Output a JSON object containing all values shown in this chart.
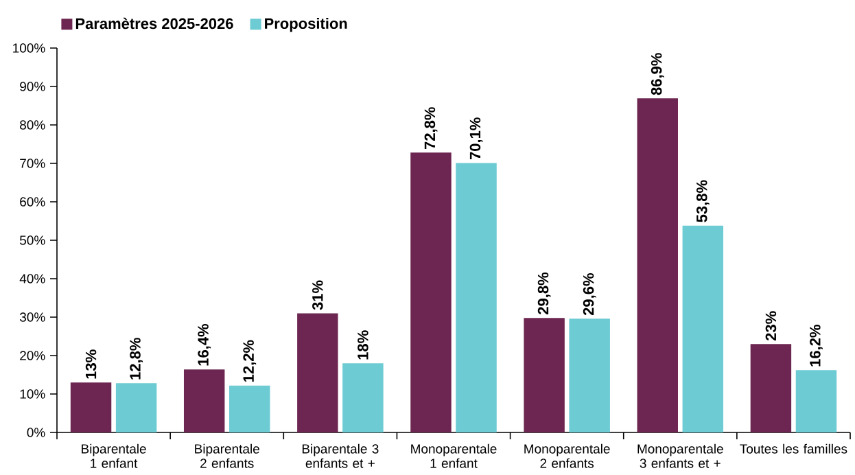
{
  "chart_data": {
    "type": "bar",
    "categories": [
      "Biparentale 1 enfant",
      "Biparentale 2 enfants",
      "Biparentale 3 enfants et +",
      "Monoparentale 1 enfant",
      "Monoparentale 2 enfants",
      "Monoparentale 3 enfants et +",
      "Toutes les familles"
    ],
    "series": [
      {
        "name": "Paramètres 2025-2026",
        "color": "#6d2651",
        "values": [
          13,
          16.4,
          31,
          72.8,
          29.8,
          86.9,
          23
        ],
        "value_labels": [
          "13%",
          "16,4%",
          "31%",
          "72,8%",
          "29,8%",
          "86,9%",
          "23%"
        ]
      },
      {
        "name": "Proposition",
        "color": "#6ccbd3",
        "values": [
          12.8,
          12.2,
          18,
          70.1,
          29.6,
          53.8,
          16.2
        ],
        "value_labels": [
          "12,8%",
          "12,2%",
          "18%",
          "70,1%",
          "29,6%",
          "53,8%",
          "16,2%"
        ]
      }
    ],
    "ylim": [
      0,
      100
    ],
    "yticks": [
      {
        "value": 0,
        "label": "0%"
      },
      {
        "value": 10,
        "label": "10%"
      },
      {
        "value": 20,
        "label": "20%"
      },
      {
        "value": 30,
        "label": "30%"
      },
      {
        "value": 40,
        "label": "40%"
      },
      {
        "value": 50,
        "label": "50%"
      },
      {
        "value": 60,
        "label": "60%"
      },
      {
        "value": 70,
        "label": "70%"
      },
      {
        "value": 80,
        "label": "80%"
      },
      {
        "value": 90,
        "label": "90%"
      },
      {
        "value": 100,
        "label": "100%"
      }
    ],
    "grid": false,
    "legend": "top left"
  }
}
